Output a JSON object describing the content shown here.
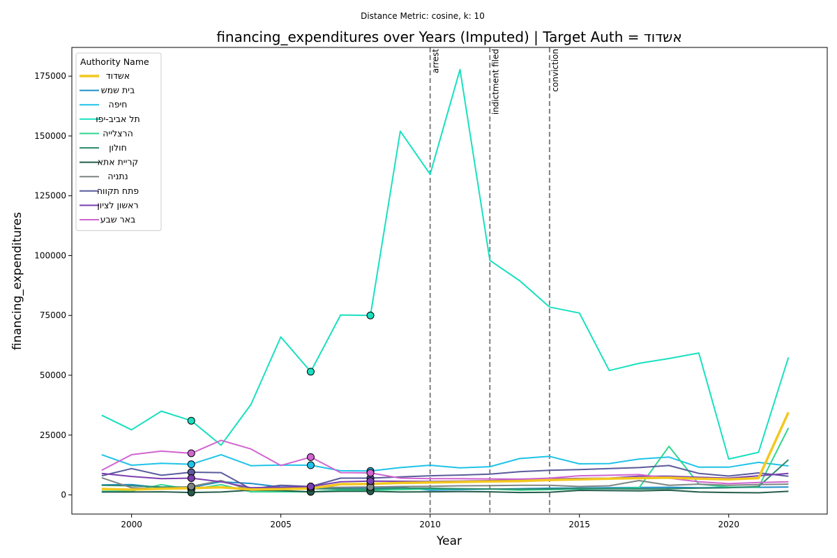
{
  "chart_data": {
    "type": "line",
    "suptitle": "Distance Metric: cosine, k: 10",
    "title": "financing_expenditures over Years (Imputed) | Target Auth = אשדוד",
    "xlabel": "Year",
    "ylabel": "financing_expenditures",
    "xlim": [
      1998,
      2023.3
    ],
    "ylim": [
      -8000,
      187000
    ],
    "x_ticks": [
      2000,
      2005,
      2010,
      2015,
      2020
    ],
    "y_ticks": [
      0,
      25000,
      50000,
      75000,
      100000,
      125000,
      150000,
      175000
    ],
    "grid": false,
    "legend": {
      "title": "Authority Name",
      "placement": "top-left"
    },
    "years": [
      1999,
      2000,
      2001,
      2002,
      2003,
      2004,
      2005,
      2006,
      2007,
      2008,
      2009,
      2010,
      2011,
      2012,
      2013,
      2014,
      2015,
      2016,
      2017,
      2018,
      2019,
      2020,
      2021,
      2022
    ],
    "events": [
      {
        "x": 2010,
        "label": "arrest"
      },
      {
        "x": 2012,
        "label": "indictment filed"
      },
      {
        "x": 2014,
        "label": "conviction"
      }
    ],
    "imputed_years": [
      2002,
      2006,
      2008
    ],
    "series": [
      {
        "name": "אשדוד",
        "color": "#f2c81e",
        "target": true,
        "values": [
          2500,
          2200,
          2600,
          2800,
          3200,
          2300,
          2400,
          2700,
          4500,
          4600,
          5000,
          5200,
          5400,
          5600,
          5800,
          6200,
          6500,
          6800,
          7000,
          7200,
          6800,
          6500,
          7000,
          34500
        ]
      },
      {
        "name": "בית שמש",
        "color": "#1f8fc9",
        "values": [
          4200,
          4300,
          3000,
          3200,
          5500,
          4800,
          3300,
          3400,
          3000,
          3000,
          3200,
          2000,
          2200,
          2400,
          2600,
          2800,
          2900,
          3000,
          3100,
          3200,
          3000,
          3100,
          3200,
          3300
        ]
      },
      {
        "name": "חיפה",
        "color": "#1ec3e8",
        "values": [
          16800,
          12400,
          13200,
          12800,
          16800,
          12200,
          12500,
          12400,
          10100,
          10000,
          11400,
          12400,
          11300,
          11800,
          15200,
          16100,
          13000,
          13100,
          15000,
          15800,
          11600,
          11600,
          13600,
          12100
        ]
      },
      {
        "name": "תל אביב-יפו",
        "color": "#18e0c0",
        "values": [
          33300,
          27200,
          35000,
          31000,
          20800,
          37800,
          66000,
          51500,
          75200,
          75000,
          152000,
          134000,
          177800,
          98000,
          89500,
          78500,
          76000,
          52000,
          55000,
          57000,
          59300,
          15000,
          17800,
          57500
        ]
      },
      {
        "name": "הרצלייה",
        "color": "#2ed68f",
        "values": [
          1500,
          1600,
          4300,
          2300,
          4300,
          1300,
          1300,
          1300,
          2000,
          2000,
          2200,
          2500,
          2500,
          2500,
          2000,
          2200,
          2500,
          2600,
          3000,
          20300,
          4500,
          3300,
          3200,
          28000
        ]
      },
      {
        "name": "חולון",
        "color": "#2e8a6e",
        "values": [
          4000,
          3800,
          3300,
          3300,
          3000,
          2800,
          2900,
          2600,
          2500,
          2400,
          2800,
          2800,
          2600,
          2500,
          2400,
          2500,
          2700,
          2600,
          2500,
          2600,
          2800,
          3000,
          3500,
          14700
        ]
      },
      {
        "name": "קריית אתא",
        "color": "#245c4a",
        "values": [
          1200,
          1200,
          1300,
          1000,
          1200,
          2000,
          1800,
          1300,
          1500,
          1500,
          1200,
          1300,
          1400,
          1300,
          1000,
          1100,
          1900,
          1800,
          1700,
          2000,
          1200,
          1000,
          900,
          1500
        ]
      },
      {
        "name": "נתניה",
        "color": "#7d8583",
        "values": [
          7200,
          3000,
          2500,
          3500,
          6000,
          2000,
          2500,
          3000,
          3200,
          3300,
          3500,
          3600,
          3800,
          3900,
          4000,
          4000,
          3500,
          3800,
          6000,
          4000,
          4500,
          4000,
          4300,
          4500
        ]
      },
      {
        "name": "פתח תקווה",
        "color": "#5a5a9c",
        "values": [
          8000,
          11000,
          8200,
          9500,
          9300,
          2500,
          4000,
          3500,
          7000,
          7000,
          7500,
          8000,
          8300,
          8700,
          9700,
          10300,
          10600,
          11000,
          11400,
          12300,
          9000,
          7900,
          9200,
          7800
        ]
      },
      {
        "name": "ראשון לציון",
        "color": "#7b3fb0",
        "values": [
          9000,
          7700,
          6800,
          7000,
          5500,
          3000,
          3200,
          3500,
          5500,
          5800,
          5700,
          5600,
          5800,
          6000,
          6400,
          6700,
          6900,
          7000,
          7800,
          7800,
          7400,
          7000,
          8000,
          9000
        ]
      },
      {
        "name": "באר שבע",
        "color": "#d065d0",
        "values": [
          10300,
          16800,
          18300,
          17400,
          22800,
          19200,
          12300,
          15800,
          9300,
          9200,
          7000,
          6800,
          6800,
          6700,
          6600,
          7000,
          8000,
          8200,
          8500,
          7000,
          5500,
          4700,
          5200,
          5500
        ]
      }
    ]
  }
}
